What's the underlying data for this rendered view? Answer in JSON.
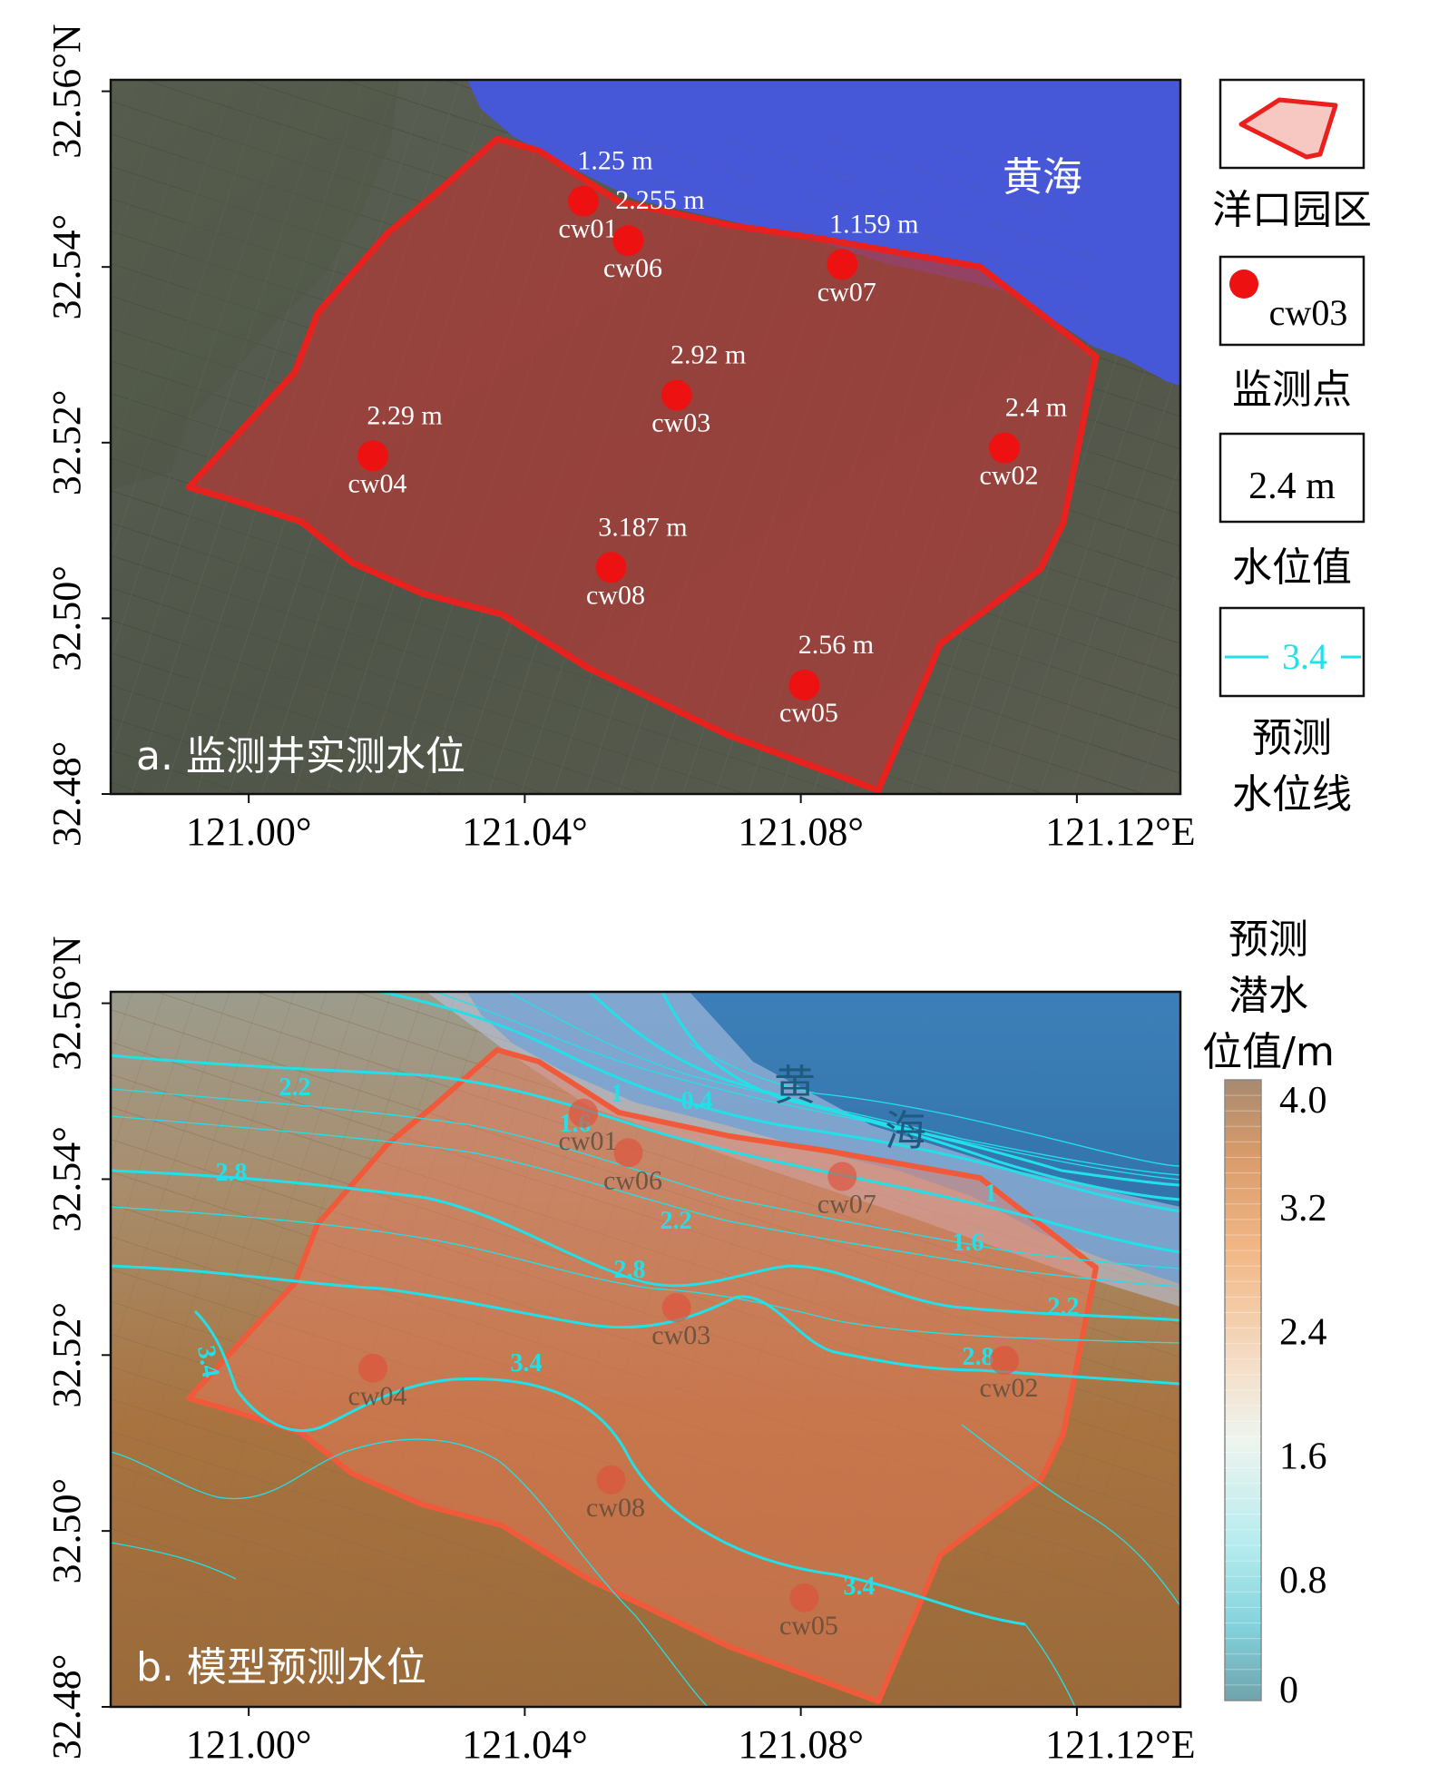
{
  "panel_a": {
    "label": "a. 监测井实测水位",
    "sea_label": "黄海",
    "wells": [
      {
        "id": "cw01",
        "lon": 121.0485,
        "lat": 32.5475,
        "value": "1.25 m"
      },
      {
        "id": "cw06",
        "lon": 121.055,
        "lat": 32.543,
        "value": "2.255 m"
      },
      {
        "id": "cw07",
        "lon": 121.086,
        "lat": 32.5403,
        "value": "1.159 m"
      },
      {
        "id": "cw03",
        "lon": 121.062,
        "lat": 32.5254,
        "value": "2.92 m"
      },
      {
        "id": "cw04",
        "lon": 121.018,
        "lat": 32.5185,
        "value": "2.29 m"
      },
      {
        "id": "cw02",
        "lon": 121.1095,
        "lat": 32.5194,
        "value": "2.4 m"
      },
      {
        "id": "cw08",
        "lon": 121.0525,
        "lat": 32.5058,
        "value": "3.187 m"
      },
      {
        "id": "cw05",
        "lon": 121.0805,
        "lat": 32.4924,
        "value": "2.56 m"
      }
    ]
  },
  "panel_b": {
    "label": "b. 模型预测水位",
    "sea_label_1": "黄",
    "sea_label_2": "海",
    "contour_labels": [
      "2.2",
      "2.8",
      "1",
      "1.6",
      "0.4",
      "2.2",
      "2.8",
      "1",
      "1.6",
      "2.2",
      "2.8",
      "3.4",
      "3.4",
      "3.4"
    ]
  },
  "axes": {
    "x_ticks": [
      "121.00°",
      "121.04°",
      "121.08°",
      "121.12°E"
    ],
    "y_ticks": [
      "32.48°",
      "32.50°",
      "32.52°",
      "32.54°",
      "32.56°N"
    ],
    "x_values": [
      121.0,
      121.04,
      121.08,
      121.12
    ],
    "y_values": [
      32.48,
      32.5,
      32.52,
      32.54,
      32.56
    ]
  },
  "legend_a": {
    "park_label": "洋口园区",
    "point_example": "cw03",
    "point_label": "监测点",
    "value_example": "2.4 m",
    "value_label": "水位值",
    "line_example": "3.4",
    "line_label_1": "预测",
    "line_label_2": "水位线"
  },
  "colorbar": {
    "title_1": "预测",
    "title_2": "潜水",
    "title_3": "位值/m",
    "ticks": [
      "4.0",
      "3.2",
      "2.4",
      "1.6",
      "0.8",
      "0"
    ],
    "tick_values": [
      4.0,
      3.2,
      2.4,
      1.6,
      0.8,
      0
    ],
    "range": [
      0,
      4.0
    ]
  },
  "colors": {
    "park_outline": "#e8211e",
    "well": "#ee1111",
    "contour": "#22e0e8",
    "sea": "#3d4fd6"
  }
}
